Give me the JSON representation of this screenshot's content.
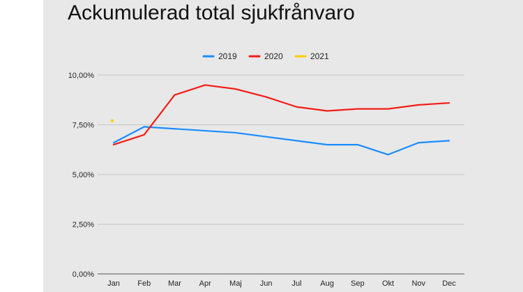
{
  "page": {
    "title": "Ackumulerad total sjukfrånvaro"
  },
  "chart_data": {
    "type": "line",
    "title": "Ackumulerad total sjukfrånvaro",
    "xlabel": "",
    "ylabel": "",
    "categories": [
      "Jan",
      "Feb",
      "Mar",
      "Apr",
      "Maj",
      "Jun",
      "Jul",
      "Aug",
      "Sep",
      "Okt",
      "Nov",
      "Dec"
    ],
    "ylim": [
      0,
      10
    ],
    "yticks": [
      0,
      2.5,
      5,
      7.5,
      10
    ],
    "ytick_labels": [
      "0,00%",
      "2,50%",
      "5,00%",
      "7,50%",
      "10,00%"
    ],
    "grid": true,
    "legend_position": "top",
    "series": [
      {
        "name": "2019",
        "color": "#1a8cff",
        "values": [
          6.6,
          7.4,
          7.3,
          7.2,
          7.1,
          6.9,
          6.7,
          6.5,
          6.5,
          6.0,
          6.6,
          6.7
        ]
      },
      {
        "name": "2020",
        "color": "#f21d16",
        "values": [
          6.5,
          7.0,
          9.0,
          9.5,
          9.3,
          8.9,
          8.4,
          8.2,
          8.3,
          8.3,
          8.5,
          8.6
        ]
      },
      {
        "name": "2021",
        "color": "#ffcc00",
        "values": [
          7.7,
          null,
          null,
          null,
          null,
          null,
          null,
          null,
          null,
          null,
          null,
          null
        ]
      }
    ]
  }
}
